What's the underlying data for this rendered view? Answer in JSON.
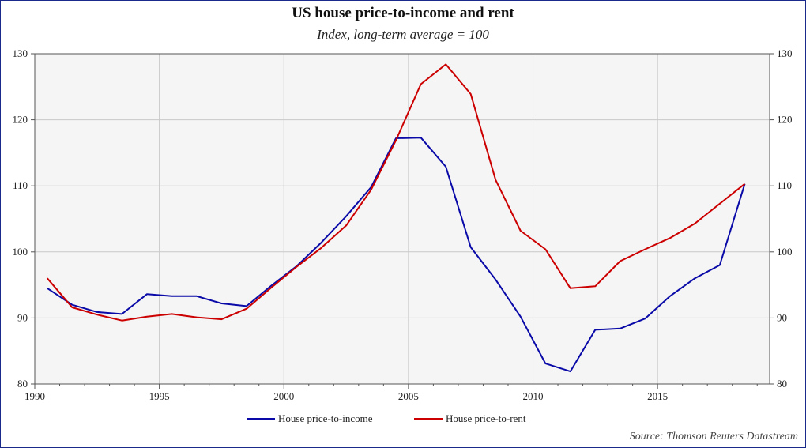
{
  "chart_data": {
    "type": "line",
    "title": "US house price-to-income and rent",
    "subtitle": "Index, long-term average = 100",
    "source": "Source: Thomson Reuters Datastream",
    "xlim": [
      1990,
      2019.5
    ],
    "ylim": [
      80,
      130
    ],
    "x_ticks": [
      1990,
      1995,
      2000,
      2005,
      2010,
      2015
    ],
    "y_ticks": [
      80,
      90,
      100,
      110,
      120,
      130
    ],
    "grid": true,
    "legend_position": "bottom-center",
    "series": [
      {
        "name": "House price-to-income",
        "color": "#0a0aa8",
        "x": [
          1990.5,
          1991.5,
          1992.5,
          1993.5,
          1994.5,
          1995.5,
          1996.5,
          1997.5,
          1998.5,
          1999.5,
          2000.5,
          2001.5,
          2002.5,
          2003.5,
          2004.5,
          2005.5,
          2006.5,
          2007.5,
          2008.5,
          2009.5,
          2010.5,
          2011.5,
          2012.5,
          2013.5,
          2014.5,
          2015.5,
          2016.5,
          2017.5,
          2018.5
        ],
        "values": [
          94.5,
          92.0,
          90.9,
          90.6,
          93.6,
          93.3,
          93.3,
          92.2,
          91.8,
          94.9,
          97.8,
          101.4,
          105.4,
          109.8,
          117.2,
          117.3,
          112.9,
          100.7,
          95.8,
          90.2,
          83.1,
          81.9,
          88.2,
          88.4,
          89.9,
          93.3,
          96.0,
          98.0,
          110.3
        ]
      },
      {
        "name": "House price-to-rent",
        "color": "#cc0000",
        "x": [
          1990.5,
          1991.5,
          1992.5,
          1993.5,
          1994.5,
          1995.5,
          1996.5,
          1997.5,
          1998.5,
          1999.5,
          2000.5,
          2001.5,
          2002.5,
          2003.5,
          2004.5,
          2005.5,
          2006.5,
          2007.5,
          2008.5,
          2009.5,
          2010.5,
          2011.5,
          2012.5,
          2013.5,
          2014.5,
          2015.5,
          2016.5,
          2017.5,
          2018.5
        ],
        "values": [
          96.0,
          91.6,
          90.5,
          89.6,
          90.2,
          90.6,
          90.1,
          89.8,
          91.4,
          94.6,
          97.7,
          100.6,
          104.0,
          109.4,
          116.9,
          125.4,
          128.4,
          123.9,
          110.9,
          103.2,
          100.4,
          94.5,
          94.8,
          98.6,
          100.4,
          102.1,
          104.3,
          107.3,
          110.3
        ]
      }
    ]
  }
}
